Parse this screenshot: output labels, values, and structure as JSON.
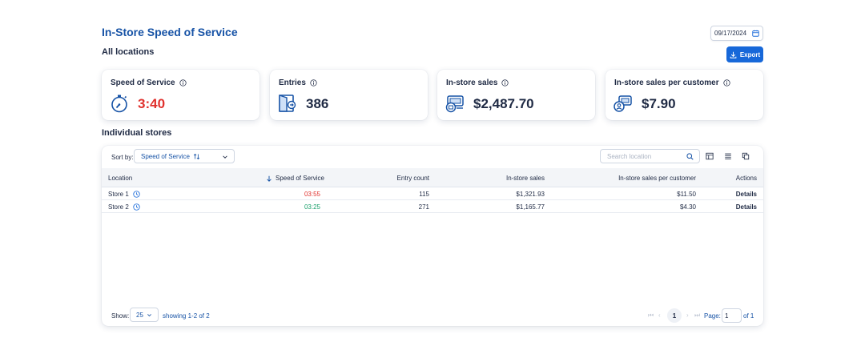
{
  "header": {
    "title": "In-Store Speed of Service",
    "subtitle": "All locations",
    "date": "09/17/2024",
    "export_label": "Export"
  },
  "kpis": [
    {
      "title": "Speed of Service",
      "value": "3:40",
      "icon": "stopwatch-icon",
      "value_color": "#e0312d"
    },
    {
      "title": "Entries",
      "value": "386",
      "icon": "door-entry-icon"
    },
    {
      "title": "In-store sales",
      "value": "$2,487.70",
      "icon": "store-register-icon"
    },
    {
      "title": "In-store sales per customer",
      "value": "$7.90",
      "icon": "customer-card-icon"
    }
  ],
  "section_title": "Individual stores",
  "toolbar": {
    "sort_label": "Sort by:",
    "sort_value": "Speed of Service",
    "search_placeholder": "Search location"
  },
  "table": {
    "columns": [
      "Location",
      "Speed of Service",
      "Entry count",
      "In-store sales",
      "In-store sales per customer",
      "Actions"
    ],
    "rows": [
      {
        "location": "Store 1",
        "speed": "03:55",
        "entries": "115",
        "sales": "$1,321.93",
        "per_customer": "$11.50",
        "action": "Details",
        "speed_status": "slow"
      },
      {
        "location": "Store 2",
        "speed": "03:25",
        "entries": "271",
        "sales": "$1,165.77",
        "per_customer": "$4.30",
        "action": "Details",
        "speed_status": "fast"
      }
    ]
  },
  "footer": {
    "show_label": "Show:",
    "page_size": "25",
    "showing": "showing 1-2 of 2",
    "current_page": "1",
    "page_label": "Page:",
    "page_input": "1",
    "page_of": "of 1"
  },
  "colors": {
    "accent": "#1768d9",
    "title": "#1753a6",
    "slow": "#e0312d",
    "fast": "#1aa06b"
  }
}
